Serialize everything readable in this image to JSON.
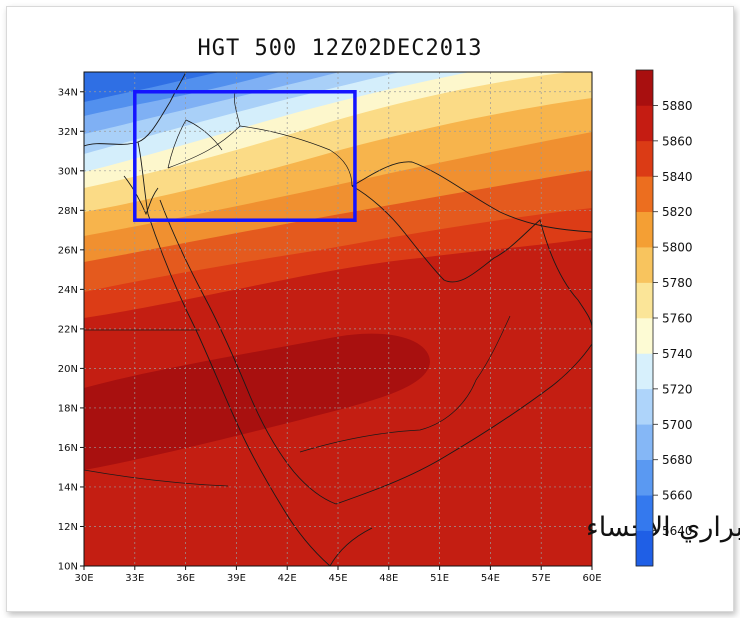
{
  "title": "HGT 500 12Z02DEC2013",
  "watermark_text": "براري الاحساء",
  "map": {
    "lon_range": [
      30,
      60
    ],
    "lat_range": [
      10,
      35
    ],
    "lon_tick_labels": [
      "30E",
      "33E",
      "36E",
      "39E",
      "42E",
      "45E",
      "48E",
      "51E",
      "54E",
      "57E",
      "60E"
    ],
    "lat_tick_labels": [
      "10N",
      "12N",
      "14N",
      "16N",
      "18N",
      "20N",
      "22N",
      "24N",
      "26N",
      "28N",
      "30N",
      "32N",
      "34N"
    ],
    "highlight_box": {
      "lon": [
        33,
        46
      ],
      "lat": [
        27.5,
        34
      ],
      "color": "#1414ff"
    }
  },
  "colorbar": {
    "labels": [
      "5640",
      "5660",
      "5680",
      "5700",
      "5720",
      "5740",
      "5760",
      "5780",
      "5800",
      "5820",
      "5840",
      "5860",
      "5880"
    ],
    "colors": [
      "#1f5fe6",
      "#3479ee",
      "#5a99f2",
      "#85b7f6",
      "#aed4fa",
      "#d7f0fc",
      "#fdfbd4",
      "#fbe598",
      "#f8c45e",
      "#f49f34",
      "#ec6e1f",
      "#db3b15",
      "#c51c12",
      "#a80f0f"
    ]
  }
}
